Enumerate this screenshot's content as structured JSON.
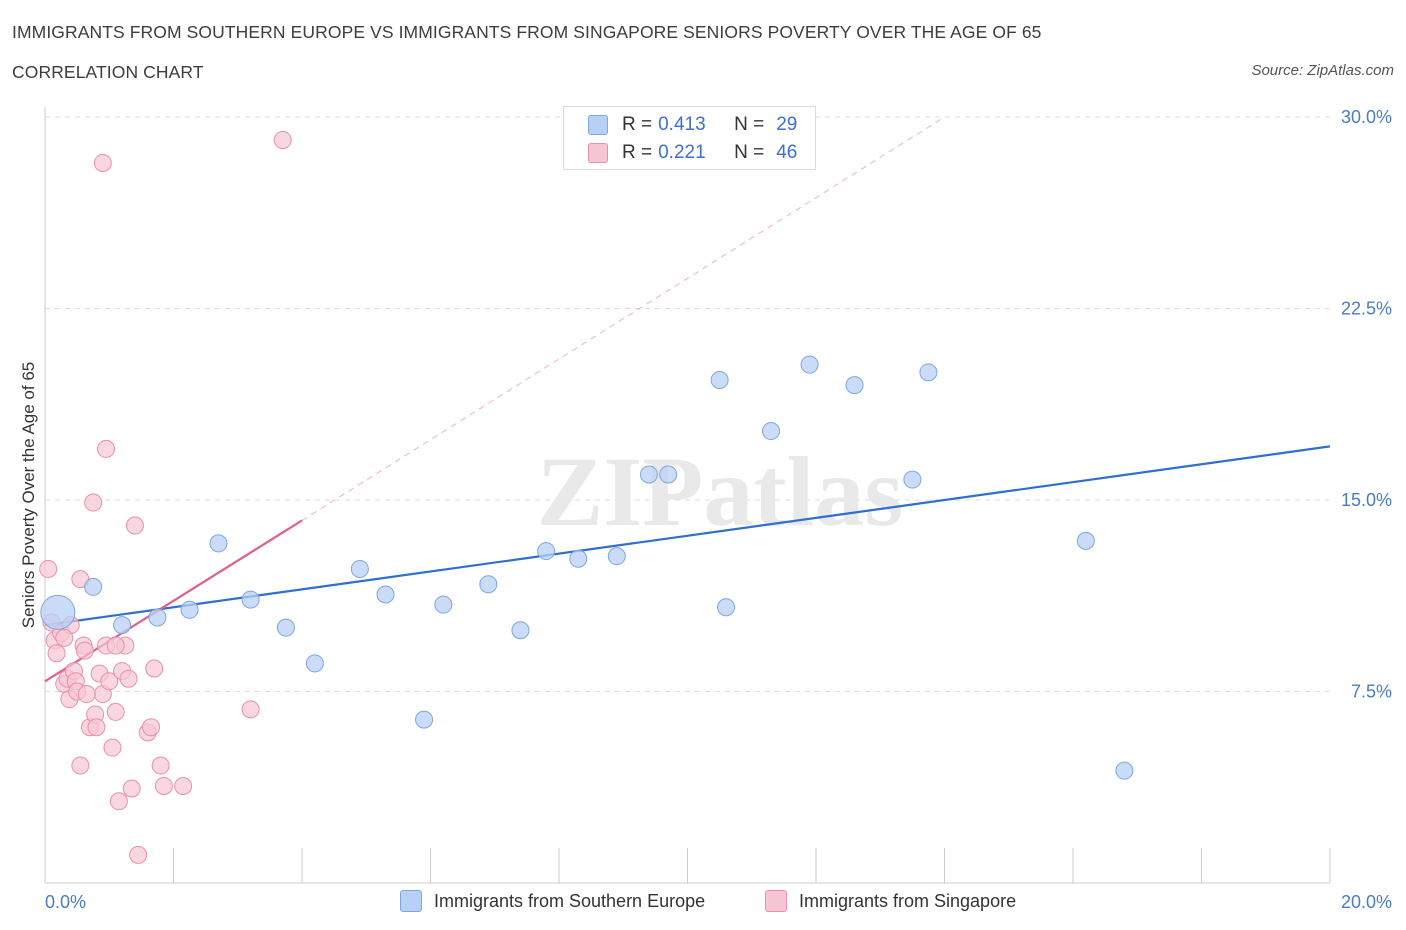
{
  "title_line1": "IMMIGRANTS FROM SOUTHERN EUROPE VS IMMIGRANTS FROM SINGAPORE SENIORS POVERTY OVER THE AGE OF 65",
  "title_line2": "CORRELATION CHART",
  "source": "Source: ZipAtlas.com",
  "watermark": "ZIPatlas",
  "colors": {
    "blue_fill": "#b8d0f4",
    "blue_stroke": "#7ea6e0",
    "blue_line": "#2f6fd0",
    "pink_fill": "#f7c6d4",
    "pink_stroke": "#ea8faa",
    "pink_line": "#e0608a",
    "grid": "#dddddd",
    "tick_text": "#4a7cc9"
  },
  "legend": {
    "rows": [
      {
        "r_label": "R =",
        "r_value": "0.413",
        "n_label": "N =",
        "n_value": "29",
        "color": "#b8d0f4",
        "stroke": "#7ea6e0"
      },
      {
        "r_label": "R =",
        "r_value": "0.221",
        "n_label": "N =",
        "n_value": "46",
        "color": "#f7c6d4",
        "stroke": "#ea8faa"
      }
    ]
  },
  "chart_data": {
    "type": "scatter",
    "title": "IMMIGRANTS FROM SOUTHERN EUROPE VS IMMIGRANTS FROM SINGAPORE SENIORS POVERTY OVER THE AGE OF 65",
    "subtitle": "CORRELATION CHART",
    "xlabel": "",
    "ylabel": "Seniors Poverty Over the Age of 65",
    "xlim": [
      0,
      20
    ],
    "ylim": [
      0,
      30
    ],
    "x_tick_labels": [
      "0.0%",
      "20.0%"
    ],
    "y_ticks": [
      7.5,
      15.0,
      22.5,
      30.0
    ],
    "y_tick_labels": [
      "7.5%",
      "15.0%",
      "22.5%",
      "30.0%"
    ],
    "grid": true,
    "legend_position": "bottom",
    "series": [
      {
        "name": "Immigrants from Southern Europe",
        "color": "blue",
        "trend": {
          "x0": 0,
          "y0": 10.1,
          "x1": 20,
          "y1": 17.1
        },
        "points": [
          {
            "x": 0.2,
            "y": 10.6,
            "size": "large"
          },
          {
            "x": 0.75,
            "y": 11.6
          },
          {
            "x": 1.2,
            "y": 10.1
          },
          {
            "x": 1.75,
            "y": 10.4
          },
          {
            "x": 2.25,
            "y": 10.7
          },
          {
            "x": 2.7,
            "y": 13.3
          },
          {
            "x": 3.2,
            "y": 11.1
          },
          {
            "x": 3.75,
            "y": 10.0
          },
          {
            "x": 4.2,
            "y": 8.6
          },
          {
            "x": 4.9,
            "y": 12.3
          },
          {
            "x": 5.3,
            "y": 11.3
          },
          {
            "x": 5.9,
            "y": 6.4
          },
          {
            "x": 6.2,
            "y": 10.9
          },
          {
            "x": 6.9,
            "y": 11.7
          },
          {
            "x": 7.4,
            "y": 9.9
          },
          {
            "x": 7.8,
            "y": 13.0
          },
          {
            "x": 8.3,
            "y": 12.7
          },
          {
            "x": 8.9,
            "y": 12.8
          },
          {
            "x": 9.4,
            "y": 16.0
          },
          {
            "x": 9.7,
            "y": 16.0
          },
          {
            "x": 10.5,
            "y": 19.7
          },
          {
            "x": 10.6,
            "y": 10.8
          },
          {
            "x": 11.3,
            "y": 17.7
          },
          {
            "x": 11.9,
            "y": 20.3
          },
          {
            "x": 12.6,
            "y": 19.5
          },
          {
            "x": 13.5,
            "y": 15.8
          },
          {
            "x": 13.75,
            "y": 20.0
          },
          {
            "x": 16.2,
            "y": 13.4
          },
          {
            "x": 16.8,
            "y": 4.4
          }
        ]
      },
      {
        "name": "Immigrants from Singapore",
        "color": "pink",
        "trend": {
          "x0": 0,
          "y0": 7.9,
          "x1": 4.0,
          "y1": 14.2
        },
        "trend_extension": {
          "x0": 4.0,
          "y0": 14.2,
          "x1": 14.0,
          "y1": 30.0
        },
        "points": [
          {
            "x": 0.05,
            "y": 12.3
          },
          {
            "x": 0.1,
            "y": 10.2
          },
          {
            "x": 0.15,
            "y": 9.5
          },
          {
            "x": 0.18,
            "y": 9.0
          },
          {
            "x": 0.25,
            "y": 9.8
          },
          {
            "x": 0.3,
            "y": 7.8
          },
          {
            "x": 0.35,
            "y": 8.0
          },
          {
            "x": 0.38,
            "y": 7.2
          },
          {
            "x": 0.4,
            "y": 10.1
          },
          {
            "x": 0.45,
            "y": 8.3
          },
          {
            "x": 0.48,
            "y": 7.9
          },
          {
            "x": 0.5,
            "y": 7.5
          },
          {
            "x": 0.55,
            "y": 11.9
          },
          {
            "x": 0.55,
            "y": 4.6
          },
          {
            "x": 0.6,
            "y": 9.3
          },
          {
            "x": 0.62,
            "y": 9.1
          },
          {
            "x": 0.7,
            "y": 6.1
          },
          {
            "x": 0.75,
            "y": 14.9
          },
          {
            "x": 0.78,
            "y": 6.6
          },
          {
            "x": 0.8,
            "y": 6.1
          },
          {
            "x": 0.85,
            "y": 8.2
          },
          {
            "x": 0.9,
            "y": 7.4
          },
          {
            "x": 0.95,
            "y": 9.3
          },
          {
            "x": 0.95,
            "y": 17.0
          },
          {
            "x": 1.0,
            "y": 7.9
          },
          {
            "x": 1.05,
            "y": 5.3
          },
          {
            "x": 1.1,
            "y": 6.7
          },
          {
            "x": 1.15,
            "y": 3.2
          },
          {
            "x": 1.2,
            "y": 8.3
          },
          {
            "x": 1.25,
            "y": 9.3
          },
          {
            "x": 1.3,
            "y": 8.0
          },
          {
            "x": 1.35,
            "y": 3.7
          },
          {
            "x": 1.4,
            "y": 14.0
          },
          {
            "x": 1.45,
            "y": 1.1
          },
          {
            "x": 1.6,
            "y": 5.9
          },
          {
            "x": 1.65,
            "y": 6.1
          },
          {
            "x": 1.7,
            "y": 8.4
          },
          {
            "x": 1.8,
            "y": 4.6
          },
          {
            "x": 1.85,
            "y": 3.8
          },
          {
            "x": 2.15,
            "y": 3.8
          },
          {
            "x": 3.2,
            "y": 6.8
          },
          {
            "x": 3.7,
            "y": 29.1
          },
          {
            "x": 0.9,
            "y": 28.2
          },
          {
            "x": 0.3,
            "y": 9.6
          },
          {
            "x": 1.1,
            "y": 9.3
          },
          {
            "x": 0.65,
            "y": 7.4
          }
        ]
      }
    ]
  }
}
